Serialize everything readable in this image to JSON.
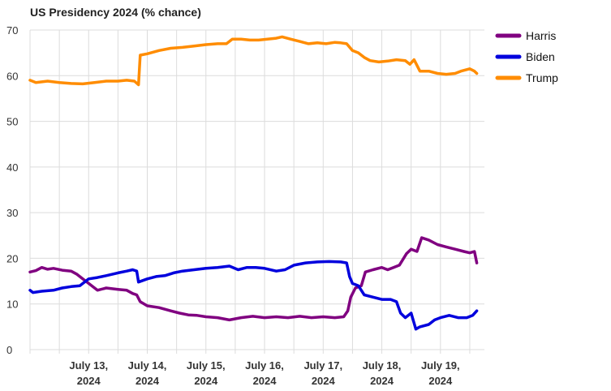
{
  "chart_data": {
    "type": "line",
    "title": "US Presidency 2024 (% chance)",
    "ylim": [
      0,
      70
    ],
    "yticks": [
      0,
      10,
      20,
      30,
      40,
      50,
      60,
      70
    ],
    "xlim": [
      12.0,
      19.75
    ],
    "xticks": [
      {
        "x": 13,
        "label_line1": "July 13,",
        "label_line2": "2024"
      },
      {
        "x": 14,
        "label_line1": "July 14,",
        "label_line2": "2024"
      },
      {
        "x": 15,
        "label_line1": "July 15,",
        "label_line2": "2024"
      },
      {
        "x": 16,
        "label_line1": "July 16,",
        "label_line2": "2024"
      },
      {
        "x": 17,
        "label_line1": "July 17,",
        "label_line2": "2024"
      },
      {
        "x": 18,
        "label_line1": "July 18,",
        "label_line2": "2024"
      },
      {
        "x": 19,
        "label_line1": "July 19,",
        "label_line2": "2024"
      }
    ],
    "grid": true,
    "legend_position": "right",
    "series": [
      {
        "name": "Harris",
        "color": "#800080",
        "points": [
          [
            12.0,
            17.0
          ],
          [
            12.1,
            17.3
          ],
          [
            12.2,
            18.0
          ],
          [
            12.3,
            17.6
          ],
          [
            12.4,
            17.8
          ],
          [
            12.55,
            17.4
          ],
          [
            12.7,
            17.2
          ],
          [
            12.8,
            16.5
          ],
          [
            12.9,
            15.5
          ],
          [
            13.0,
            14.5
          ],
          [
            13.15,
            13.0
          ],
          [
            13.3,
            13.5
          ],
          [
            13.5,
            13.2
          ],
          [
            13.65,
            13.0
          ],
          [
            13.75,
            12.3
          ],
          [
            13.82,
            12.0
          ],
          [
            13.88,
            10.5
          ],
          [
            14.0,
            9.6
          ],
          [
            14.2,
            9.2
          ],
          [
            14.4,
            8.5
          ],
          [
            14.55,
            8.0
          ],
          [
            14.7,
            7.6
          ],
          [
            14.85,
            7.5
          ],
          [
            15.0,
            7.2
          ],
          [
            15.2,
            7.0
          ],
          [
            15.4,
            6.5
          ],
          [
            15.6,
            7.0
          ],
          [
            15.8,
            7.3
          ],
          [
            16.0,
            7.0
          ],
          [
            16.2,
            7.2
          ],
          [
            16.4,
            7.0
          ],
          [
            16.6,
            7.3
          ],
          [
            16.8,
            7.0
          ],
          [
            17.0,
            7.2
          ],
          [
            17.2,
            7.0
          ],
          [
            17.35,
            7.2
          ],
          [
            17.42,
            8.5
          ],
          [
            17.47,
            11.5
          ],
          [
            17.55,
            13.5
          ],
          [
            17.65,
            14.0
          ],
          [
            17.72,
            17.0
          ],
          [
            17.85,
            17.5
          ],
          [
            18.0,
            18.0
          ],
          [
            18.1,
            17.5
          ],
          [
            18.2,
            18.0
          ],
          [
            18.3,
            18.5
          ],
          [
            18.42,
            21.0
          ],
          [
            18.5,
            22.0
          ],
          [
            18.6,
            21.5
          ],
          [
            18.68,
            24.5
          ],
          [
            18.8,
            24.0
          ],
          [
            18.95,
            23.0
          ],
          [
            19.1,
            22.5
          ],
          [
            19.25,
            22.0
          ],
          [
            19.4,
            21.5
          ],
          [
            19.5,
            21.2
          ],
          [
            19.58,
            21.5
          ],
          [
            19.62,
            19.0
          ]
        ]
      },
      {
        "name": "Biden",
        "color": "#0000dd",
        "points": [
          [
            12.0,
            13.0
          ],
          [
            12.05,
            12.5
          ],
          [
            12.2,
            12.8
          ],
          [
            12.4,
            13.0
          ],
          [
            12.55,
            13.5
          ],
          [
            12.7,
            13.8
          ],
          [
            12.85,
            14.0
          ],
          [
            13.0,
            15.5
          ],
          [
            13.15,
            15.8
          ],
          [
            13.3,
            16.2
          ],
          [
            13.5,
            16.8
          ],
          [
            13.65,
            17.2
          ],
          [
            13.75,
            17.5
          ],
          [
            13.82,
            17.2
          ],
          [
            13.85,
            14.8
          ],
          [
            14.0,
            15.5
          ],
          [
            14.15,
            16.0
          ],
          [
            14.3,
            16.2
          ],
          [
            14.45,
            16.8
          ],
          [
            14.6,
            17.2
          ],
          [
            14.8,
            17.5
          ],
          [
            15.0,
            17.8
          ],
          [
            15.2,
            18.0
          ],
          [
            15.4,
            18.3
          ],
          [
            15.55,
            17.5
          ],
          [
            15.7,
            18.0
          ],
          [
            15.85,
            18.0
          ],
          [
            16.0,
            17.8
          ],
          [
            16.2,
            17.2
          ],
          [
            16.35,
            17.5
          ],
          [
            16.5,
            18.5
          ],
          [
            16.7,
            19.0
          ],
          [
            16.9,
            19.2
          ],
          [
            17.1,
            19.3
          ],
          [
            17.3,
            19.2
          ],
          [
            17.4,
            19.0
          ],
          [
            17.45,
            16.0
          ],
          [
            17.5,
            14.5
          ],
          [
            17.6,
            14.0
          ],
          [
            17.7,
            12.0
          ],
          [
            17.85,
            11.5
          ],
          [
            18.0,
            11.0
          ],
          [
            18.15,
            11.0
          ],
          [
            18.25,
            10.5
          ],
          [
            18.32,
            8.0
          ],
          [
            18.4,
            7.0
          ],
          [
            18.5,
            8.0
          ],
          [
            18.58,
            4.5
          ],
          [
            18.65,
            5.0
          ],
          [
            18.8,
            5.5
          ],
          [
            18.9,
            6.5
          ],
          [
            19.0,
            7.0
          ],
          [
            19.15,
            7.5
          ],
          [
            19.3,
            7.0
          ],
          [
            19.45,
            7.0
          ],
          [
            19.55,
            7.5
          ],
          [
            19.62,
            8.5
          ]
        ]
      },
      {
        "name": "Trump",
        "color": "#ff8c00",
        "points": [
          [
            12.0,
            59.0
          ],
          [
            12.1,
            58.5
          ],
          [
            12.3,
            58.8
          ],
          [
            12.5,
            58.5
          ],
          [
            12.7,
            58.3
          ],
          [
            12.9,
            58.2
          ],
          [
            13.1,
            58.5
          ],
          [
            13.3,
            58.8
          ],
          [
            13.5,
            58.8
          ],
          [
            13.65,
            59.0
          ],
          [
            13.78,
            58.8
          ],
          [
            13.85,
            58.0
          ],
          [
            13.88,
            64.5
          ],
          [
            14.0,
            64.8
          ],
          [
            14.2,
            65.5
          ],
          [
            14.4,
            66.0
          ],
          [
            14.6,
            66.2
          ],
          [
            14.8,
            66.5
          ],
          [
            15.0,
            66.8
          ],
          [
            15.2,
            67.0
          ],
          [
            15.35,
            67.0
          ],
          [
            15.45,
            68.0
          ],
          [
            15.6,
            68.0
          ],
          [
            15.75,
            67.8
          ],
          [
            15.9,
            67.8
          ],
          [
            16.05,
            68.0
          ],
          [
            16.2,
            68.2
          ],
          [
            16.3,
            68.5
          ],
          [
            16.45,
            68.0
          ],
          [
            16.6,
            67.5
          ],
          [
            16.75,
            67.0
          ],
          [
            16.9,
            67.2
          ],
          [
            17.05,
            67.0
          ],
          [
            17.2,
            67.3
          ],
          [
            17.3,
            67.2
          ],
          [
            17.4,
            67.0
          ],
          [
            17.5,
            65.5
          ],
          [
            17.6,
            65.0
          ],
          [
            17.7,
            64.0
          ],
          [
            17.8,
            63.3
          ],
          [
            17.95,
            63.0
          ],
          [
            18.1,
            63.2
          ],
          [
            18.25,
            63.5
          ],
          [
            18.4,
            63.3
          ],
          [
            18.48,
            62.5
          ],
          [
            18.55,
            63.5
          ],
          [
            18.65,
            61.0
          ],
          [
            18.8,
            61.0
          ],
          [
            18.95,
            60.5
          ],
          [
            19.1,
            60.3
          ],
          [
            19.25,
            60.5
          ],
          [
            19.35,
            61.0
          ],
          [
            19.5,
            61.5
          ],
          [
            19.58,
            61.0
          ],
          [
            19.62,
            60.5
          ]
        ]
      }
    ]
  }
}
